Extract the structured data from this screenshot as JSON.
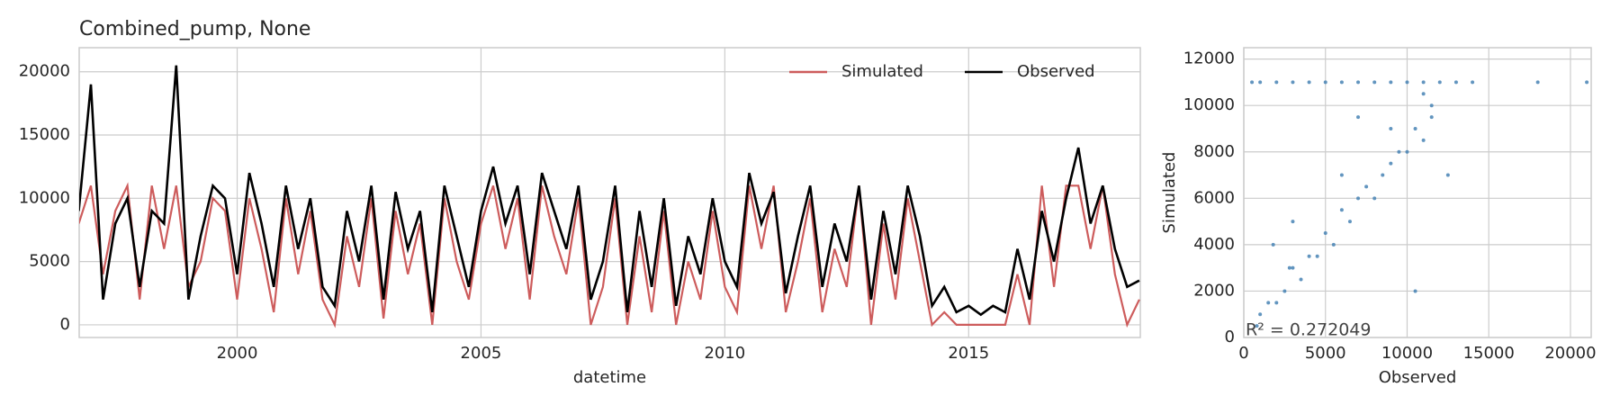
{
  "chart_data": [
    {
      "type": "line",
      "title": "Combined_pump, None",
      "xlabel": "datetime",
      "x": [
        1996.75,
        1997.0,
        1997.25,
        1997.5,
        1997.75,
        1998.0,
        1998.25,
        1998.5,
        1998.75,
        1999.0,
        1999.25,
        1999.5,
        1999.75,
        2000.0,
        2000.25,
        2000.5,
        2000.75,
        2001.0,
        2001.25,
        2001.5,
        2001.75,
        2002.0,
        2002.25,
        2002.5,
        2002.75,
        2003.0,
        2003.25,
        2003.5,
        2003.75,
        2004.0,
        2004.25,
        2004.5,
        2004.75,
        2005.0,
        2005.25,
        2005.5,
        2005.75,
        2006.0,
        2006.25,
        2006.5,
        2006.75,
        2007.0,
        2007.25,
        2007.5,
        2007.75,
        2008.0,
        2008.25,
        2008.5,
        2008.75,
        2009.0,
        2009.25,
        2009.5,
        2009.75,
        2010.0,
        2010.25,
        2010.5,
        2010.75,
        2011.0,
        2011.25,
        2011.5,
        2011.75,
        2012.0,
        2012.25,
        2012.5,
        2012.75,
        2013.0,
        2013.25,
        2013.5,
        2013.75,
        2014.0,
        2014.25,
        2014.5,
        2014.75,
        2015.0,
        2015.25,
        2015.5,
        2015.75,
        2016.0,
        2016.25,
        2016.5,
        2016.75,
        2017.0,
        2017.25,
        2017.5,
        2017.75,
        2018.0,
        2018.25,
        2018.5
      ],
      "series": [
        {
          "name": "Simulated",
          "color": "#cd5c5c",
          "values": [
            8000,
            11000,
            4000,
            9000,
            11000,
            2000,
            11000,
            6000,
            11000,
            3000,
            5000,
            10000,
            9000,
            2000,
            10000,
            6000,
            1000,
            10000,
            4000,
            9000,
            2000,
            0,
            7000,
            3000,
            10000,
            500,
            9000,
            4000,
            8000,
            0,
            10000,
            5000,
            2000,
            8000,
            11000,
            6000,
            10000,
            2000,
            11000,
            7000,
            4000,
            10000,
            0,
            3000,
            10000,
            0,
            7000,
            1000,
            9000,
            0,
            5000,
            2000,
            9000,
            3000,
            1000,
            11000,
            6000,
            11000,
            1000,
            5000,
            10000,
            1000,
            6000,
            3000,
            11000,
            0,
            8000,
            2000,
            10000,
            5000,
            0,
            1000,
            0,
            0,
            0,
            0,
            0,
            4000,
            0,
            11000,
            3000,
            11000,
            11000,
            6000,
            11000,
            4000,
            0,
            2000
          ]
        },
        {
          "name": "Observed",
          "color": "#000000",
          "values": [
            9000,
            19000,
            2000,
            8000,
            10000,
            3000,
            9000,
            8000,
            20500,
            2000,
            7000,
            11000,
            10000,
            4000,
            12000,
            8000,
            3000,
            11000,
            6000,
            10000,
            3000,
            1500,
            9000,
            5000,
            11000,
            2000,
            10500,
            6000,
            9000,
            1000,
            11000,
            7000,
            3000,
            9000,
            12500,
            8000,
            11000,
            4000,
            12000,
            9000,
            6000,
            11000,
            2000,
            5000,
            11000,
            1000,
            9000,
            3000,
            10000,
            1500,
            7000,
            4000,
            10000,
            5000,
            3000,
            12000,
            8000,
            10500,
            2500,
            7000,
            11000,
            3000,
            8000,
            5000,
            11000,
            2000,
            9000,
            4000,
            11000,
            7000,
            1500,
            3000,
            1000,
            1500,
            800,
            1500,
            1000,
            6000,
            2000,
            9000,
            5000,
            10000,
            14000,
            8000,
            11000,
            6000,
            3000,
            3500
          ]
        }
      ],
      "xlim": [
        1996.76,
        2018.52
      ],
      "xticks": [
        2000,
        2005,
        2010,
        2015
      ],
      "ylim": [
        -1000,
        21900
      ],
      "yticks": [
        0,
        5000,
        10000,
        15000,
        20000
      ],
      "grid": true,
      "legend": "upper right"
    },
    {
      "type": "scatter",
      "xlabel": "Observed",
      "ylabel": "Simulated",
      "color": "#4682b4",
      "annotation": "R² = 0.272049",
      "x": [
        1000,
        2000,
        3000,
        500,
        1500,
        4000,
        5000,
        6000,
        7000,
        8000,
        9000,
        10000,
        11000,
        12000,
        13000,
        14000,
        18000,
        21000,
        3000,
        4500,
        6000,
        7500,
        9000,
        10500,
        11500,
        2000,
        3500,
        5000,
        6500,
        8000,
        9500,
        11000,
        1000,
        2500,
        4000,
        5500,
        7000,
        8500,
        10000,
        11500,
        12500,
        800,
        1800,
        2800,
        6000,
        9000,
        11000,
        7000,
        3000,
        10500
      ],
      "values": [
        11000,
        11000,
        11000,
        11000,
        1500,
        11000,
        11000,
        11000,
        11000,
        11000,
        11000,
        11000,
        11000,
        11000,
        11000,
        11000,
        11000,
        11000,
        3000,
        3500,
        5500,
        6500,
        7500,
        9000,
        9500,
        1500,
        2500,
        4500,
        5000,
        6000,
        8000,
        8500,
        1000,
        2000,
        3500,
        4000,
        6000,
        7000,
        8000,
        10000,
        7000,
        500,
        4000,
        3000,
        7000,
        9000,
        10500,
        9500,
        5000,
        2000
      ],
      "xlim": [
        0,
        21270
      ],
      "xticks": [
        0,
        5000,
        10000,
        15000,
        20000
      ],
      "ylim": [
        0,
        12490
      ],
      "yticks": [
        0,
        2000,
        4000,
        6000,
        8000,
        10000,
        12000
      ],
      "grid": true
    }
  ]
}
